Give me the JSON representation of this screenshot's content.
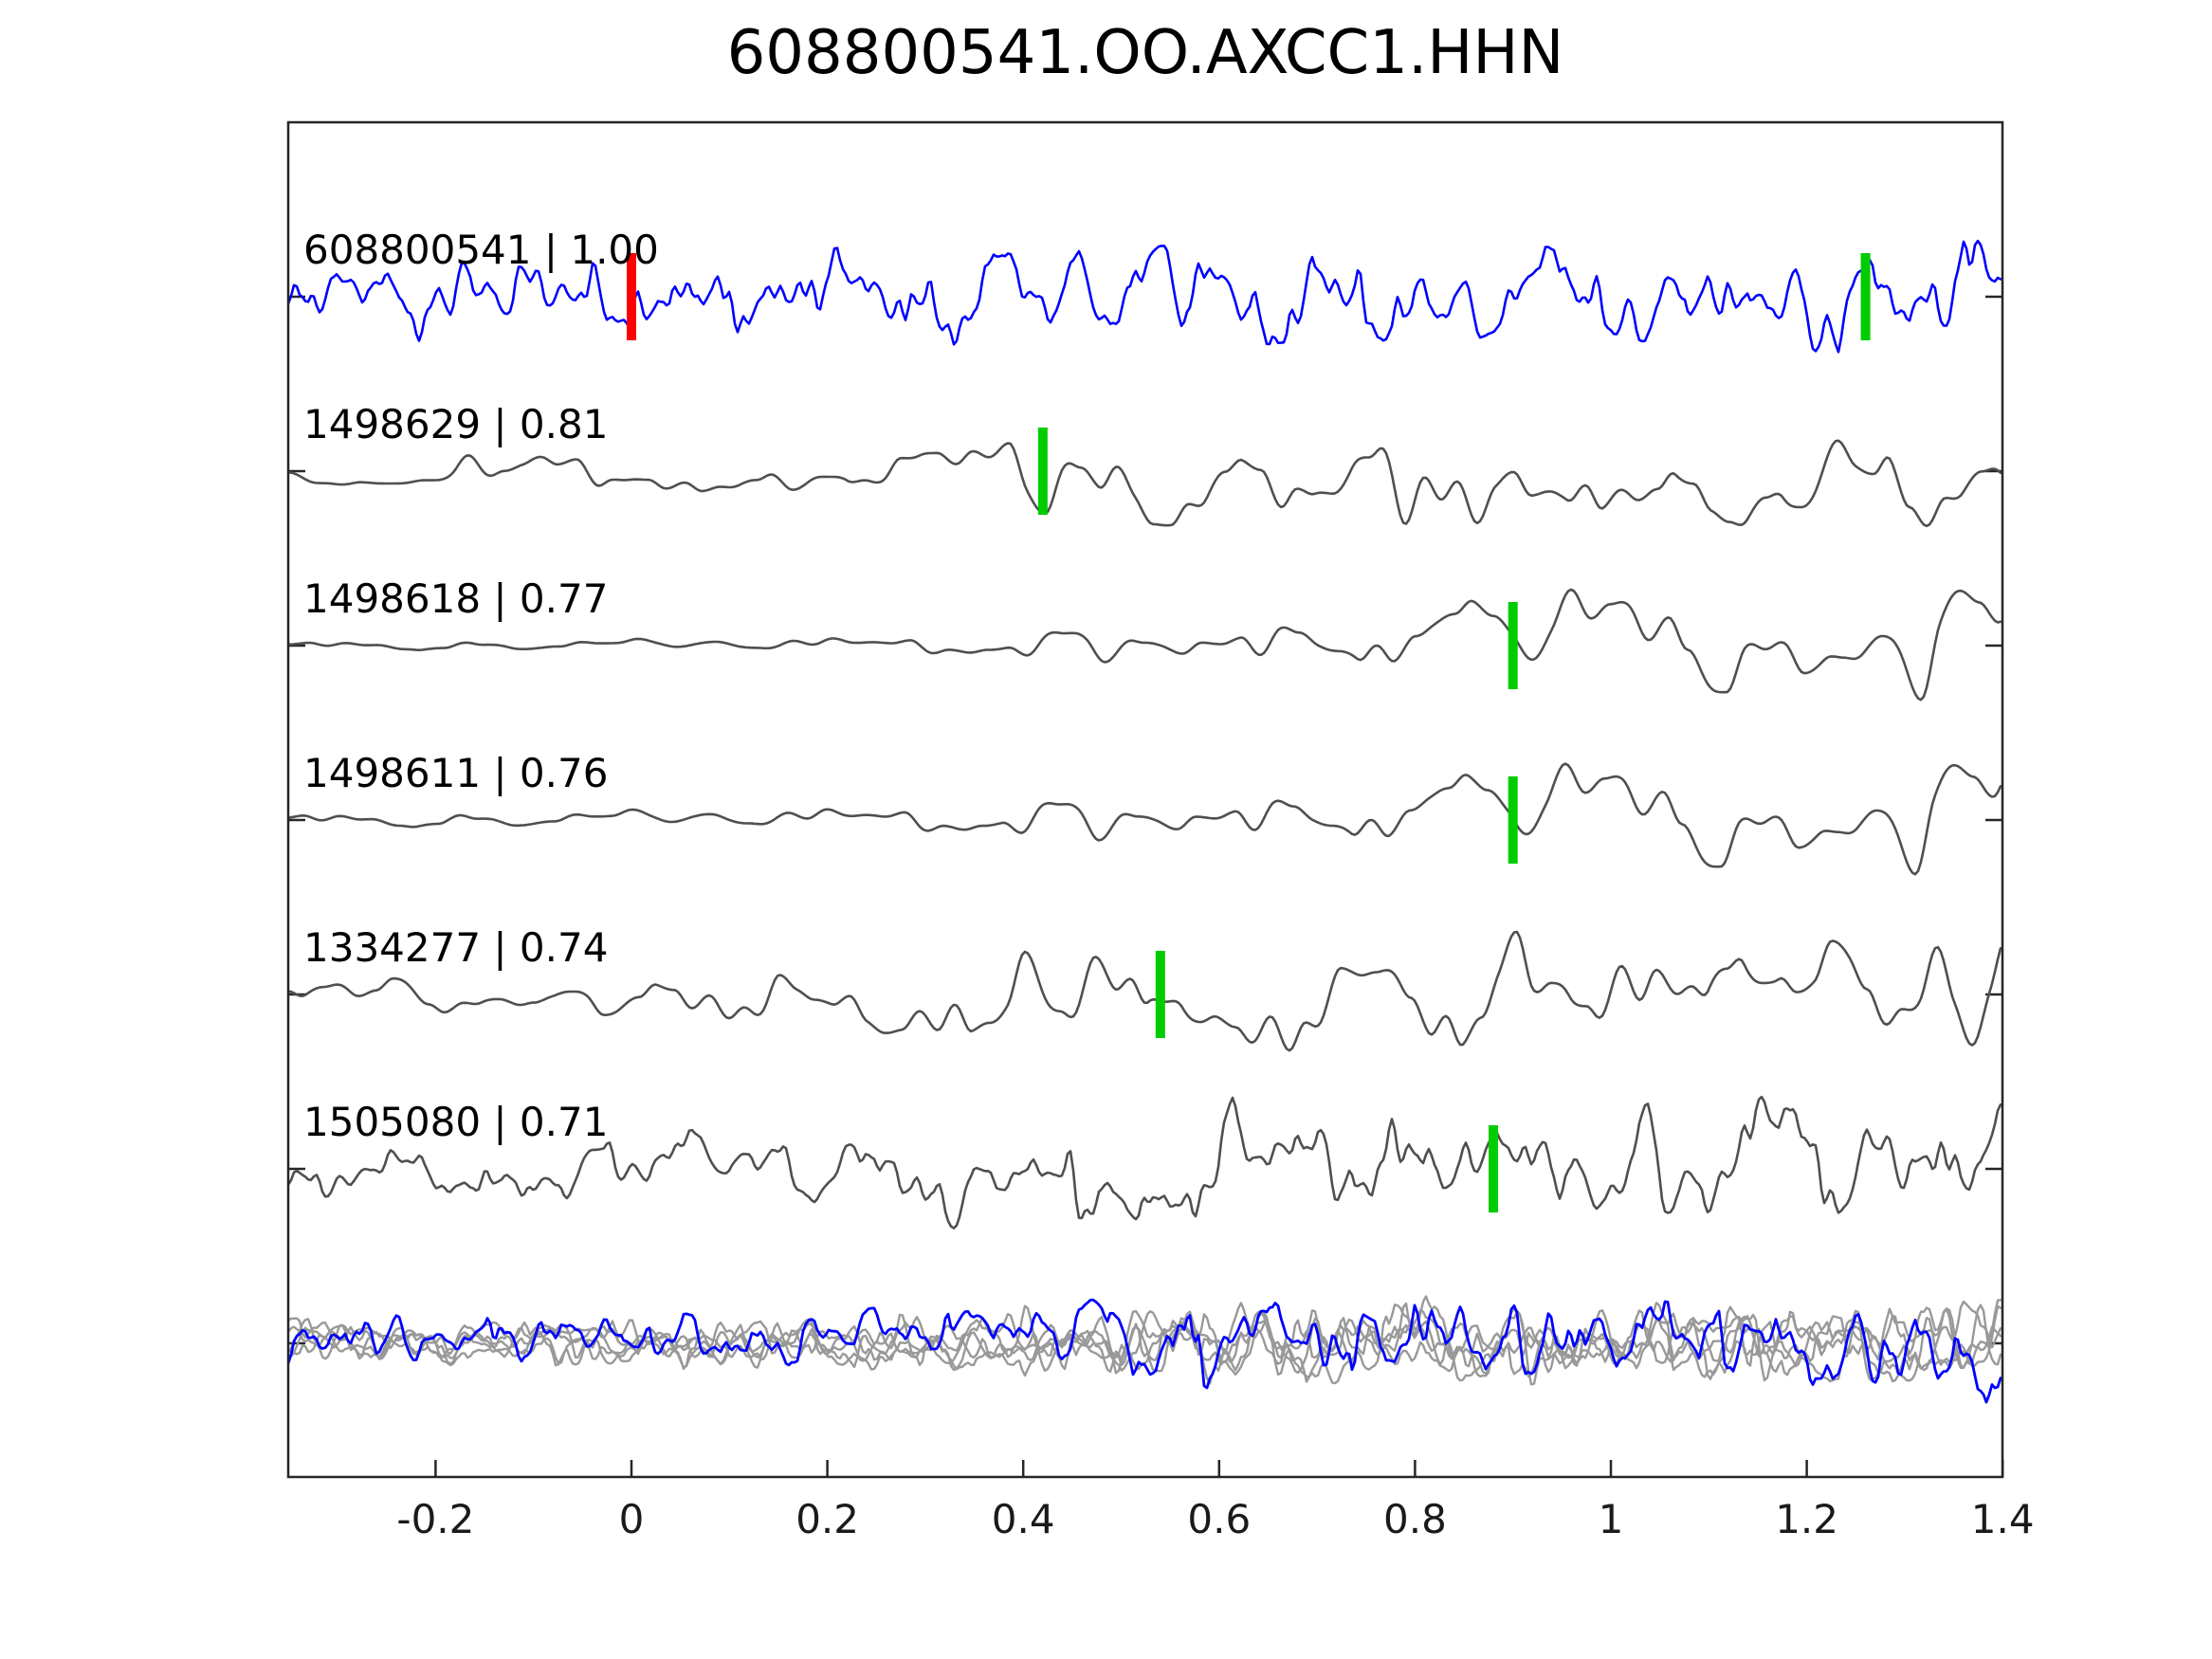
{
  "title": "608800541.OO.AXCC1.HHN",
  "chart_data": {
    "type": "line",
    "title": "608800541.OO.AXCC1.HHN",
    "xlabel": "",
    "ylabel": "",
    "xlim": [
      -0.35,
      1.4
    ],
    "xticks": [
      -0.2,
      0,
      0.2,
      0.4,
      0.6,
      0.8,
      1,
      1.2,
      1.4
    ],
    "xtick_labels": [
      "-0.2",
      "0",
      "0.2",
      "0.4",
      "0.6",
      "0.8",
      "1",
      "1.2",
      "1.4"
    ],
    "grid": false,
    "legend": "none",
    "colors": {
      "template_trace": "#0000ff",
      "detection_trace": "#4f4f4f",
      "overlay_trace": "#999999",
      "pick_green": "#00cc00",
      "pick_red": "#ff0000",
      "axis": "#262626"
    },
    "traces": [
      {
        "label": "608800541 | 1.00",
        "event_id": "608800541",
        "correlation": 1.0,
        "color": "#0000ff",
        "picks": [
          {
            "time": 0.0,
            "color": "#ff0000"
          },
          {
            "time": 1.26,
            "color": "#00cc00"
          }
        ]
      },
      {
        "label": "1498629 | 0.81",
        "event_id": "1498629",
        "correlation": 0.81,
        "color": "#4f4f4f",
        "picks": [
          {
            "time": 0.42,
            "color": "#00cc00"
          }
        ]
      },
      {
        "label": "1498618 | 0.77",
        "event_id": "1498618",
        "correlation": 0.77,
        "color": "#4f4f4f",
        "picks": [
          {
            "time": 0.9,
            "color": "#00cc00"
          }
        ]
      },
      {
        "label": "1498611 | 0.76",
        "event_id": "1498611",
        "correlation": 0.76,
        "color": "#4f4f4f",
        "picks": [
          {
            "time": 0.9,
            "color": "#00cc00"
          }
        ]
      },
      {
        "label": "1334277 | 0.74",
        "event_id": "1334277",
        "correlation": 0.74,
        "color": "#4f4f4f",
        "picks": [
          {
            "time": 0.54,
            "color": "#00cc00"
          }
        ]
      },
      {
        "label": "1505080 | 0.71",
        "event_id": "1505080",
        "correlation": 0.71,
        "color": "#4f4f4f",
        "picks": [
          {
            "time": 0.88,
            "color": "#00cc00"
          }
        ]
      }
    ],
    "overlay": {
      "description": "all aligned detection waveforms overlaid with template",
      "gray_trace_count": 5,
      "gray_color": "#999999",
      "highlight_color": "#0000ff"
    }
  }
}
